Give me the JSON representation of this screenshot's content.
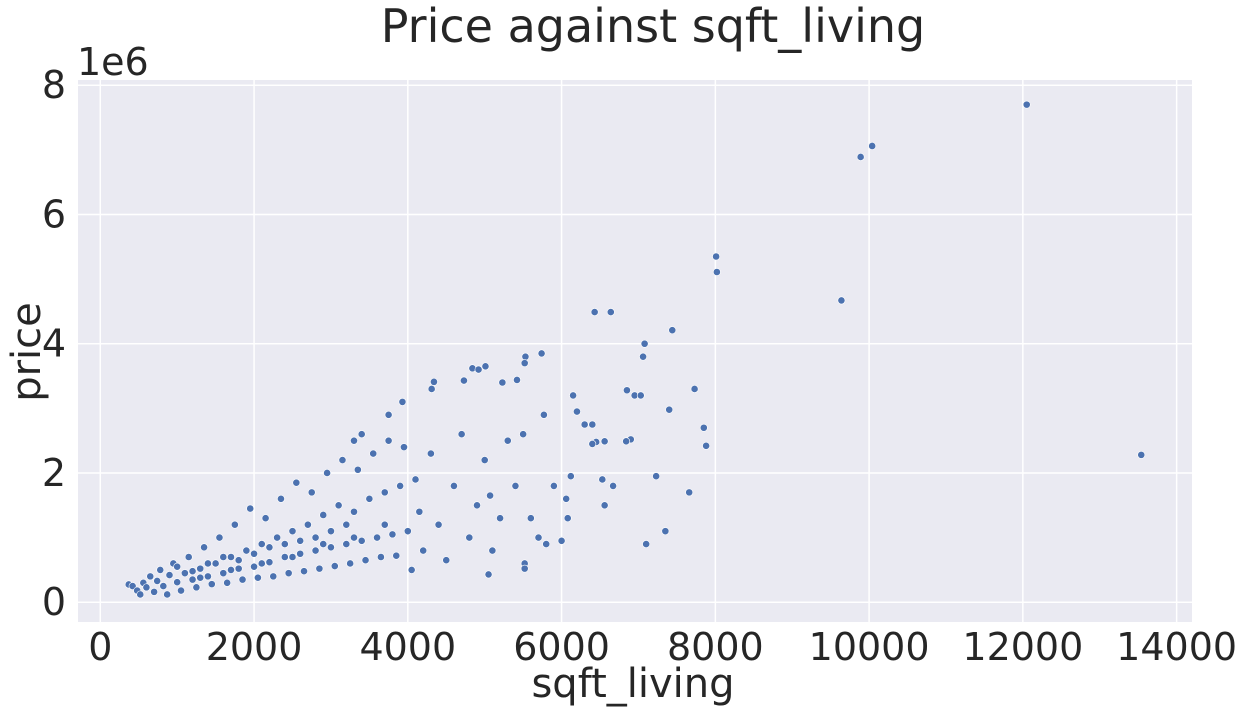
{
  "chart_data": {
    "type": "scatter",
    "title": "Price against sqft_living",
    "x_label": "sqft_living",
    "y_label": "price",
    "y_offset_label": "1e6",
    "color": "#4c72b0",
    "grid": true,
    "xlim": [
      -290,
      14200
    ],
    "ylim": [
      -306000,
      8081000
    ],
    "xticks": [
      0,
      2000,
      4000,
      6000,
      8000,
      10000,
      12000,
      14000
    ],
    "yticks": [
      {
        "value": 0,
        "label": "0"
      },
      {
        "value": 2000000,
        "label": "2"
      },
      {
        "value": 4000000,
        "label": "4"
      },
      {
        "value": 6000000,
        "label": "6"
      },
      {
        "value": 8000000,
        "label": "8"
      }
    ],
    "x": [
      12050,
      10040,
      9890,
      8010,
      8020,
      9640,
      13540,
      6640,
      6430,
      7440,
      7080,
      7060,
      7730,
      6850,
      6950,
      7030,
      7400,
      7850,
      7880,
      6900,
      6840,
      7230,
      7660,
      7350,
      7100,
      6150,
      6200,
      6300,
      6400,
      6450,
      6560,
      6400,
      6530,
      6560,
      6670,
      6120,
      6060,
      6080,
      5740,
      5530,
      5520,
      5420,
      5230,
      5010,
      4840,
      4920,
      4730,
      4340,
      4310,
      3930,
      3750,
      3400,
      3300,
      5770,
      5500,
      5070,
      5050,
      5520,
      5520,
      5800,
      370,
      420,
      480,
      520,
      560,
      600,
      650,
      700,
      740,
      780,
      820,
      870,
      900,
      950,
      1000,
      1050,
      1100,
      1150,
      1200,
      1250,
      1300,
      1350,
      1400,
      1450,
      1500,
      1550,
      1600,
      1650,
      1700,
      1750,
      1800,
      1850,
      1900,
      1950,
      2000,
      2050,
      2100,
      2150,
      2200,
      2250,
      2300,
      2350,
      2400,
      2450,
      2500,
      2550,
      2600,
      2650,
      2700,
      2750,
      2800,
      2850,
      2900,
      2950,
      3000,
      3050,
      3100,
      3150,
      3200,
      3250,
      3300,
      3350,
      3400,
      3450,
      3500,
      3550,
      3600,
      3650,
      3700,
      3750,
      3800,
      3850,
      3900,
      3950,
      4000,
      4050,
      4100,
      4150,
      4200,
      4300,
      4400,
      4500,
      4600,
      4700,
      4800,
      4900,
      5000,
      5100,
      5200,
      5300,
      5400,
      5600,
      5700,
      5900,
      6000,
      1000,
      1200,
      1400,
      1600,
      1800,
      2000,
      2200,
      2400,
      2600,
      2800,
      3000,
      3200,
      1300,
      1700,
      2100,
      2500,
      2900,
      3300,
      3700
    ],
    "values": [
      7700000,
      7060000,
      6890000,
      5350000,
      5110000,
      4670000,
      2280000,
      4490000,
      4490000,
      4210000,
      4000000,
      3800000,
      3300000,
      3280000,
      3200000,
      3200000,
      2980000,
      2700000,
      2420000,
      2520000,
      2490000,
      1950000,
      1700000,
      1100000,
      900000,
      3200000,
      2950000,
      2750000,
      2750000,
      2480000,
      2490000,
      2450000,
      1900000,
      1500000,
      1800000,
      1950000,
      1600000,
      1300000,
      3850000,
      3800000,
      3700000,
      3440000,
      3400000,
      3650000,
      3620000,
      3600000,
      3430000,
      3410000,
      3300000,
      3100000,
      2900000,
      2600000,
      2500000,
      2900000,
      2600000,
      1650000,
      430000,
      600000,
      520000,
      900000,
      275000,
      250000,
      180000,
      120000,
      300000,
      230000,
      400000,
      160000,
      330000,
      500000,
      250000,
      120000,
      420000,
      600000,
      310000,
      180000,
      450000,
      700000,
      350000,
      230000,
      520000,
      850000,
      400000,
      280000,
      600000,
      1000000,
      450000,
      300000,
      700000,
      1200000,
      520000,
      350000,
      800000,
      1450000,
      550000,
      380000,
      900000,
      1300000,
      620000,
      400000,
      1000000,
      1600000,
      700000,
      450000,
      1100000,
      1850000,
      750000,
      480000,
      1200000,
      1700000,
      800000,
      520000,
      1350000,
      2000000,
      850000,
      560000,
      1500000,
      2200000,
      900000,
      600000,
      1400000,
      2050000,
      950000,
      650000,
      1600000,
      2300000,
      1000000,
      700000,
      1700000,
      2500000,
      1050000,
      720000,
      1800000,
      2400000,
      1100000,
      500000,
      1900000,
      1400000,
      800000,
      2300000,
      1200000,
      650000,
      1800000,
      2600000,
      1000000,
      1500000,
      2200000,
      800000,
      1300000,
      2500000,
      1800000,
      1300000,
      1000000,
      1800000,
      950000,
      550000,
      480000,
      600000,
      700000,
      650000,
      750000,
      850000,
      900000,
      950000,
      1000000,
      1100000,
      1200000,
      380000,
      500000,
      600000,
      700000,
      900000,
      1000000,
      1200000
    ]
  }
}
